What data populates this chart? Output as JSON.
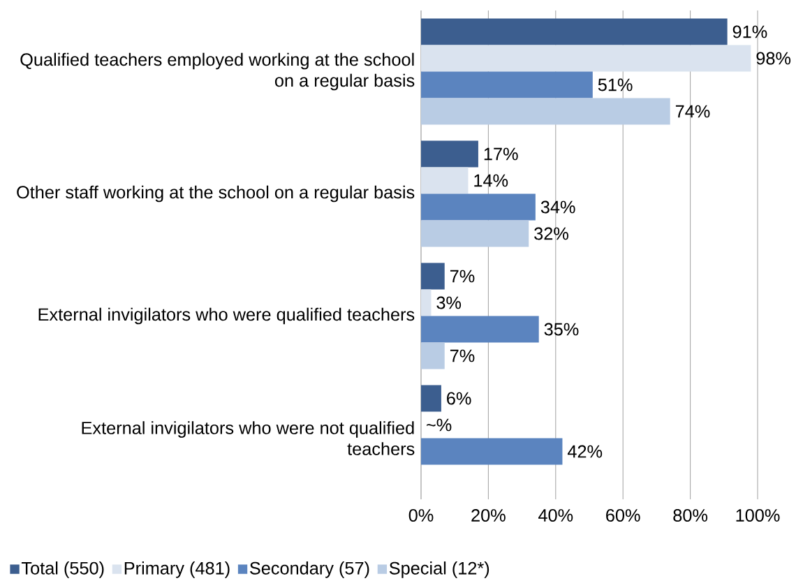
{
  "chart_data": {
    "type": "bar",
    "orientation": "horizontal",
    "categories": [
      "Qualified teachers employed working at the school on a regular basis",
      "Other staff working at the school on a regular basis",
      "External invigilators who were qualified teachers",
      "External invigilators who were not qualified teachers"
    ],
    "series": [
      {
        "name": "Total (550)",
        "color": "#3c5e8f",
        "values": [
          91,
          17,
          7,
          6
        ],
        "value_labels": [
          "91%",
          "17%",
          "7%",
          "6%"
        ]
      },
      {
        "name": "Primary (481)",
        "color": "#dae3ef",
        "values": [
          98,
          14,
          3,
          null
        ],
        "value_labels": [
          "98%",
          "14%",
          "3%",
          "~%"
        ]
      },
      {
        "name": "Secondary (57)",
        "color": "#5b84bf",
        "values": [
          51,
          34,
          35,
          42
        ],
        "value_labels": [
          "51%",
          "34%",
          "35%",
          "42%"
        ]
      },
      {
        "name": "Special (12*)",
        "color": "#b9cce4",
        "values": [
          74,
          32,
          7,
          null
        ],
        "value_labels": [
          "74%",
          "32%",
          "7%",
          null
        ]
      }
    ],
    "xlim": [
      0,
      100
    ],
    "xticks": [
      {
        "value": 0,
        "label": "0%"
      },
      {
        "value": 20,
        "label": "20%"
      },
      {
        "value": 40,
        "label": "40%"
      },
      {
        "value": 60,
        "label": "60%"
      },
      {
        "value": 80,
        "label": "80%"
      },
      {
        "value": 100,
        "label": "100%"
      }
    ],
    "grid": "x",
    "legend": "bottom"
  }
}
